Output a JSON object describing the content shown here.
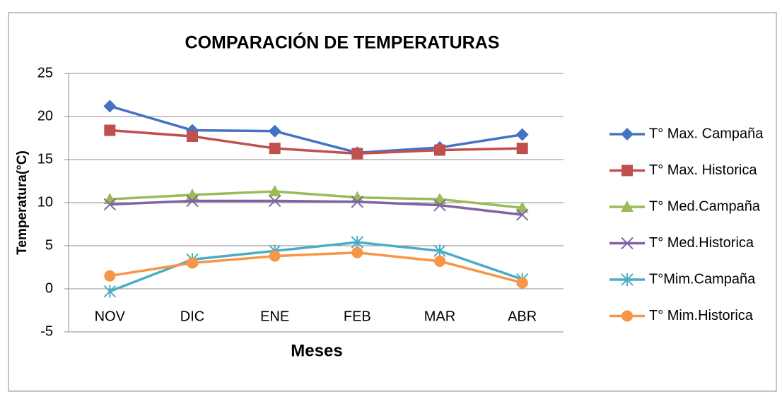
{
  "chart_data": {
    "type": "line",
    "title": "COMPARACIÓN DE TEMPERATURAS",
    "x_label": "Meses",
    "y_label": "Temperatura(°C)",
    "categories": [
      "NOV",
      "DIC",
      "ENE",
      "FEB",
      "MAR",
      "ABR"
    ],
    "ylim": [
      -5,
      25
    ],
    "yticks": [
      -5,
      0,
      5,
      10,
      15,
      20,
      25
    ],
    "grid": true,
    "legend": "right",
    "series": [
      {
        "name": "T° Max. Campaña",
        "color": "#4472c4",
        "marker": "diamond",
        "values": [
          21.2,
          18.4,
          18.3,
          15.8,
          16.4,
          17.9
        ]
      },
      {
        "name": "T° Max. Historica",
        "color": "#c0504d",
        "marker": "square",
        "values": [
          18.4,
          17.7,
          16.3,
          15.7,
          16.1,
          16.3
        ]
      },
      {
        "name": "T° Med.Campaña",
        "color": "#9bbb59",
        "marker": "triangle",
        "values": [
          10.4,
          10.9,
          11.3,
          10.6,
          10.4,
          9.4
        ]
      },
      {
        "name": "T° Med.Historica",
        "color": "#8064a2",
        "marker": "x",
        "values": [
          9.8,
          10.2,
          10.2,
          10.1,
          9.7,
          8.6
        ]
      },
      {
        "name": "T°Mim.Campaña",
        "color": "#4bacc6",
        "marker": "star",
        "values": [
          -0.3,
          3.4,
          4.4,
          5.4,
          4.4,
          1.1
        ]
      },
      {
        "name": "T° Mim.Historica",
        "color": "#f79646",
        "marker": "circle",
        "values": [
          1.5,
          3.0,
          3.8,
          4.2,
          3.2,
          0.7
        ]
      }
    ]
  }
}
